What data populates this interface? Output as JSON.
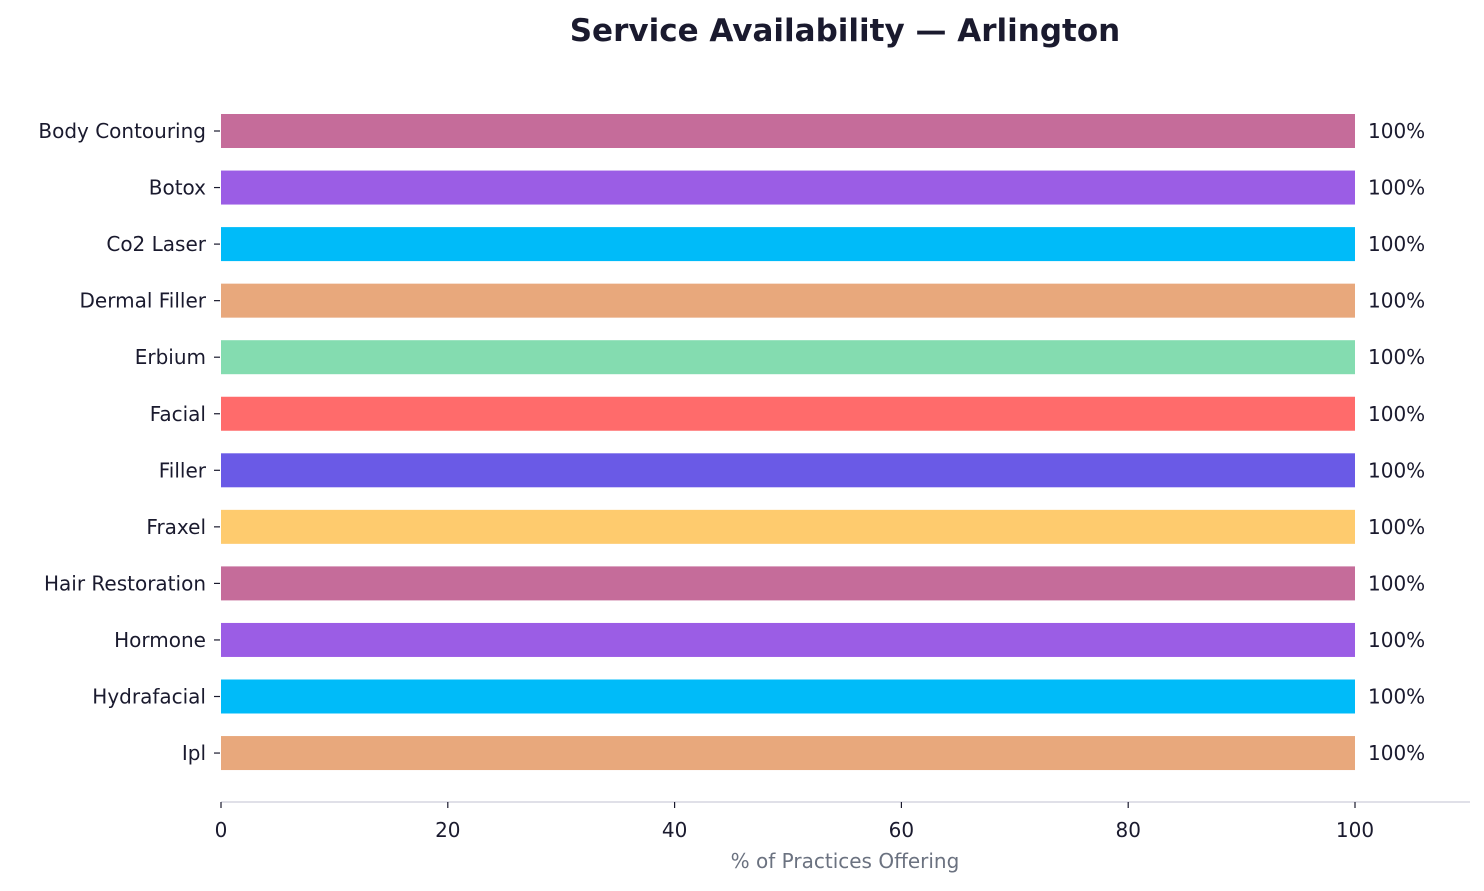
{
  "chart_data": {
    "type": "bar",
    "orientation": "horizontal",
    "title": "Service Availability — Arlington",
    "xlabel": "% of Practices Offering",
    "ylabel": "",
    "xlim": [
      0,
      110
    ],
    "xticks": [
      0,
      20,
      40,
      60,
      80,
      100
    ],
    "grid": false,
    "categories": [
      "Body Contouring",
      "Botox",
      "Co2 Laser",
      "Dermal Filler",
      "Erbium",
      "Facial",
      "Filler",
      "Fraxel",
      "Hair Restoration",
      "Hormone",
      "Hydrafacial",
      "Ipl"
    ],
    "values": [
      100,
      100,
      100,
      100,
      100,
      100,
      100,
      100,
      100,
      100,
      100,
      100
    ],
    "data_labels": [
      "100%",
      "100%",
      "100%",
      "100%",
      "100%",
      "100%",
      "100%",
      "100%",
      "100%",
      "100%",
      "100%",
      "100%"
    ],
    "colors": [
      "#c56c9a",
      "#9b5de5",
      "#00bbf9",
      "#e8a87c",
      "#84dcb0",
      "#ff6b6b",
      "#6a5ae6",
      "#fecb6e",
      "#c56c9a",
      "#9b5de5",
      "#00bbf9",
      "#e8a87c"
    ]
  }
}
